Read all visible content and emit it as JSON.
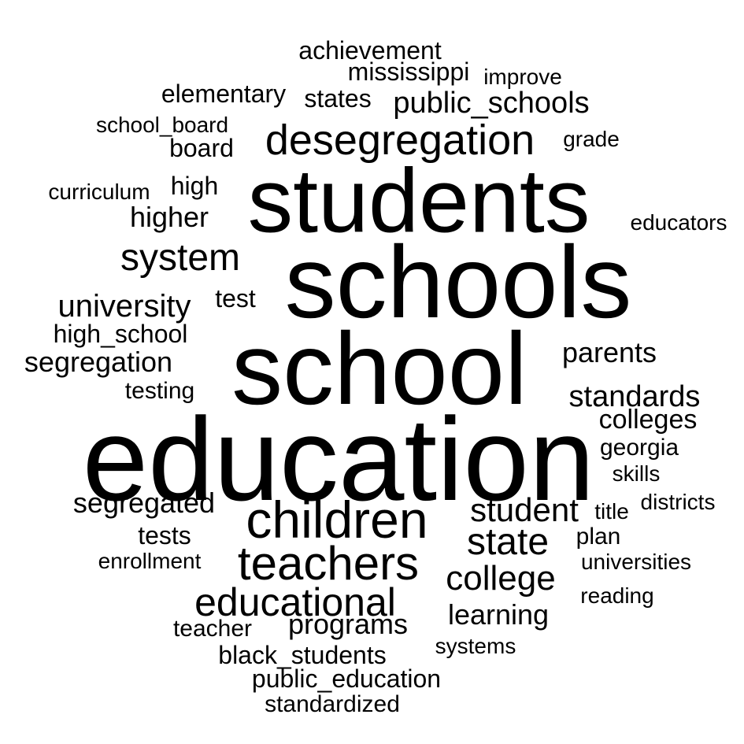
{
  "word_cloud": {
    "text_color": "#000000",
    "background_color": "#ffffff",
    "words": [
      "education",
      "school",
      "schools",
      "students",
      "children",
      "teachers",
      "desegregation",
      "educational",
      "system",
      "state",
      "college",
      "student",
      "university",
      "public_schools",
      "segregation",
      "standards",
      "higher",
      "parents",
      "segregated",
      "programs",
      "learning",
      "colleges",
      "states",
      "mississippi",
      "achievement",
      "elementary",
      "high_school",
      "board",
      "high",
      "test",
      "testing",
      "tests",
      "teacher",
      "black_students",
      "public_education",
      "standardized",
      "school_board",
      "curriculum",
      "improve",
      "grade",
      "educators",
      "georgia",
      "skills",
      "districts",
      "title",
      "plan",
      "universities",
      "reading",
      "enrollment",
      "systems"
    ]
  }
}
